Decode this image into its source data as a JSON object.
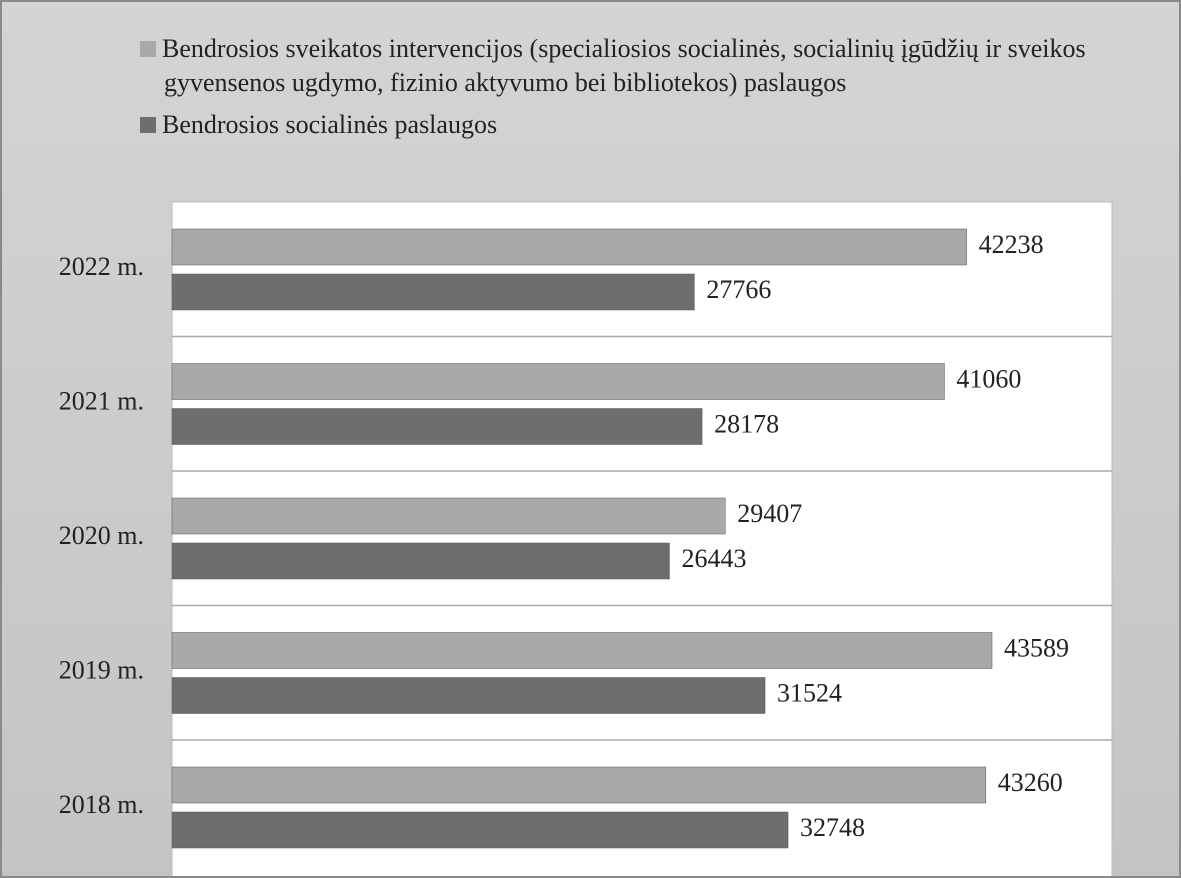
{
  "chart_data": {
    "type": "hbar",
    "categories": [
      "2022 m.",
      "2021 m.",
      "2020 m.",
      "2019 m.",
      "2018 m."
    ],
    "series": [
      {
        "name": "Bendrosios sveikatos intervencijos (specialiosios socialinės, socialinių įgūdžių ir sveikos gyvensenos ugdymo, fizinio aktyvumo bei bibliotekos) paslaugos",
        "color": "#a9a9a9",
        "values": [
          42238,
          41060,
          29407,
          43589,
          43260
        ]
      },
      {
        "name": "Bendrosios socialinės paslaugos",
        "color": "#6e6e6e",
        "values": [
          27766,
          28178,
          26443,
          31524,
          32748
        ]
      }
    ]
  }
}
